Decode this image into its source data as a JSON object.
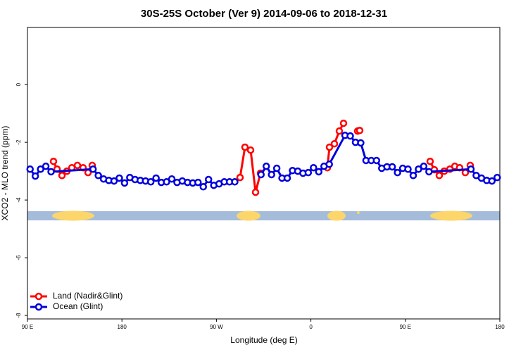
{
  "chart_data": {
    "type": "line",
    "title": "30S-25S October (Ver 9)   2014-09-06 to 2018-12-31",
    "xlabel": "Longitude (deg E)",
    "ylabel": "XCO2 - MLO trend (ppm)",
    "xlim": [
      90,
      540
    ],
    "ylim": [
      -8.12,
      1.98
    ],
    "xticks": [
      {
        "value": 90,
        "label": "90 E"
      },
      180,
      {
        "value": 270,
        "label": "90 W"
      },
      {
        "value": 360,
        "label": "0"
      },
      {
        "value": 450,
        "label": "90 E"
      },
      {
        "value": 540,
        "label": "180"
      }
    ],
    "yticks": [
      0,
      -2,
      -4,
      -6,
      -8
    ],
    "legend": "bottom-left",
    "series": [
      {
        "name": "Land (Nadir&Glint)",
        "color": "#ff0000",
        "x": [
          114.8,
          118.2,
          122.9,
          127.6,
          132.3,
          137.6,
          143.0,
          147.7,
          151.7,
          155,
          292.5,
          297.2,
          302.6,
          307.3,
          312.0,
          345,
          375.7,
          377.7,
          382.4,
          387.1,
          391.1,
          398,
          404.5,
          406.5,
          440,
          473.6,
          477.6,
          482.3,
          487.0,
          492.4,
          497.1,
          501.7,
          507.1,
          511.8
        ],
        "values": [
          -2.66,
          -2.93,
          -3.15,
          -3.0,
          -2.88,
          -2.8,
          -2.88,
          -3.05,
          -2.8,
          null,
          -3.22,
          -2.17,
          -2.27,
          -3.73,
          -3.07,
          null,
          -2.88,
          -2.17,
          -2.05,
          -1.61,
          -1.34,
          null,
          -1.61,
          -1.59,
          null,
          -2.66,
          -2.95,
          -3.15,
          -3.0,
          -2.93,
          -2.83,
          -2.88,
          -3.05,
          -2.8
        ]
      },
      {
        "name": "Ocean (Glint)",
        "color": "#0000dd",
        "x": [
          92.5,
          97.5,
          102.5,
          107.5,
          112.5,
          152.5,
          157.5,
          162.5,
          167.5,
          172.5,
          177.5,
          182.5,
          187.5,
          192.5,
          197.5,
          202.5,
          207.5,
          212.5,
          217.5,
          222.5,
          227.5,
          232.5,
          237.5,
          242.5,
          247.5,
          252.5,
          257.5,
          262.5,
          267.5,
          272.5,
          277.5,
          282.5,
          287.5,
          290,
          312.5,
          317.5,
          322.5,
          327.5,
          332.5,
          337.5,
          342.5,
          347.5,
          352.5,
          357.5,
          362.5,
          367.5,
          372.5,
          377.5,
          392.5,
          397.5,
          402.5,
          407.5,
          412.5,
          417.5,
          422.5,
          427.5,
          432.5,
          437.5,
          442.5,
          447.5,
          452.5,
          457.5,
          462.5,
          467.5,
          472.5,
          512.5,
          517.5,
          522.5,
          527.5,
          532.5,
          537.5
        ],
        "values": [
          -2.93,
          -3.17,
          -2.93,
          -2.83,
          -3.02,
          -2.93,
          -3.15,
          -3.27,
          -3.32,
          -3.34,
          -3.24,
          -3.41,
          -3.22,
          -3.29,
          -3.32,
          -3.34,
          -3.37,
          -3.24,
          -3.39,
          -3.37,
          -3.27,
          -3.39,
          -3.34,
          -3.39,
          -3.41,
          -3.39,
          -3.54,
          -3.29,
          -3.49,
          -3.44,
          -3.37,
          -3.37,
          -3.37,
          null,
          -3.12,
          -2.83,
          -3.12,
          -2.9,
          -3.24,
          -3.24,
          -2.98,
          -3.0,
          -3.07,
          -3.05,
          -2.88,
          -3.02,
          -2.83,
          -2.76,
          -1.76,
          -1.78,
          -2.0,
          -2.02,
          -2.63,
          -2.63,
          -2.63,
          -2.9,
          -2.85,
          -2.85,
          -3.05,
          -2.9,
          -2.93,
          -3.15,
          -2.93,
          -2.83,
          -3.02,
          -2.93,
          -3.15,
          -3.24,
          -3.32,
          -3.34,
          -3.22
        ]
      }
    ]
  }
}
